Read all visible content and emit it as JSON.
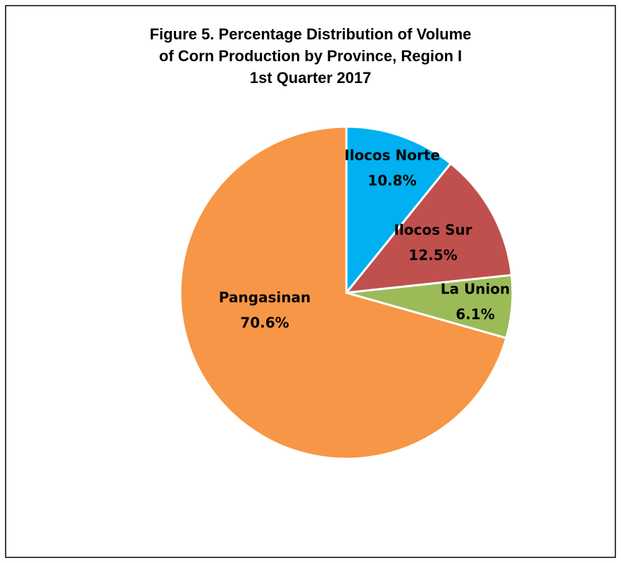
{
  "chart_data": {
    "type": "pie",
    "title": [
      "Figure 5. Percentage Distribution of Volume",
      "of Corn Production by Province, Region I",
      "1st Quarter 2017"
    ],
    "categories": [
      "Ilocos Norte",
      "Ilocos Sur",
      "La Union",
      "Pangasinan"
    ],
    "values": [
      10.8,
      12.5,
      6.1,
      70.6
    ],
    "value_labels": [
      "10.8%",
      "12.5%",
      "6.1%",
      "70.6%"
    ],
    "colors": [
      "#00b0f0",
      "#c0504d",
      "#9bbb59",
      "#f79646"
    ]
  }
}
